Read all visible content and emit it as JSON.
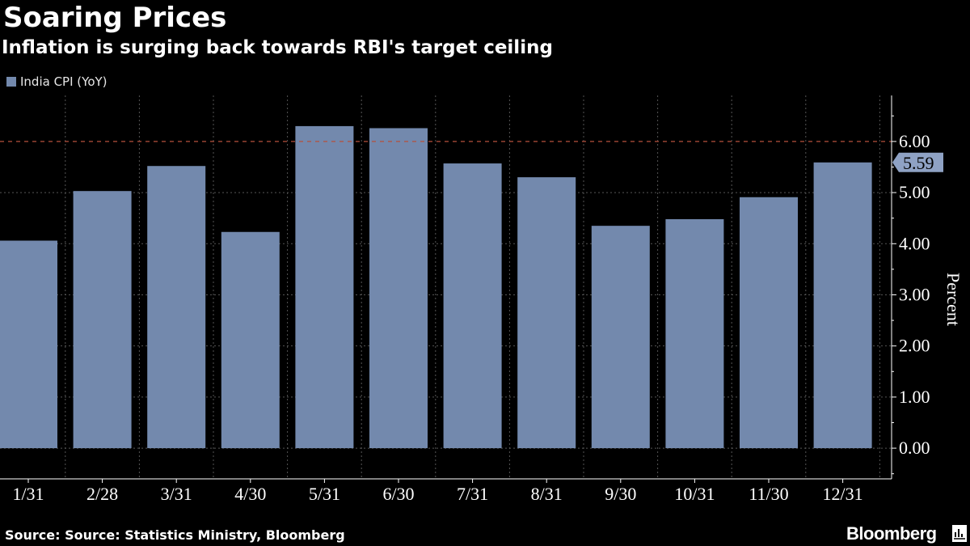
{
  "header": {
    "title": "Soaring Prices",
    "subtitle": "Inflation is surging back towards RBI's target ceiling"
  },
  "legend": {
    "label": "India CPI (YoY)"
  },
  "footer": {
    "source": "Source: Source: Statistics Ministry, Bloomberg",
    "brand": "Bloomberg"
  },
  "colors": {
    "bar": "#7389ad",
    "reference_line": "#b5513c",
    "grid": "#555555",
    "background": "#000000"
  },
  "chart_data": {
    "type": "bar",
    "title": "Soaring Prices",
    "subtitle": "Inflation is surging back towards RBI's target ceiling",
    "categories": [
      "1/31",
      "2/28",
      "3/31",
      "4/30",
      "5/31",
      "6/30",
      "7/31",
      "8/31",
      "9/30",
      "10/31",
      "11/30",
      "12/31"
    ],
    "series": [
      {
        "name": "India CPI (YoY)",
        "values": [
          4.06,
          5.03,
          5.52,
          4.23,
          6.3,
          6.26,
          5.57,
          5.3,
          4.35,
          4.48,
          4.91,
          5.59
        ]
      }
    ],
    "ylabel": "Percent",
    "ylim": [
      -0.6,
      6.9
    ],
    "yticks": [
      0,
      1,
      2,
      3,
      4,
      5,
      6
    ],
    "ytick_labels": [
      "0.00",
      "1.00",
      "2.00",
      "3.00",
      "4.00",
      "5.00",
      "6.00"
    ],
    "reference_line": 6.0,
    "last_value_label": "5.59",
    "grid": true,
    "legend_position": "top-left",
    "y_axis_side": "right"
  }
}
